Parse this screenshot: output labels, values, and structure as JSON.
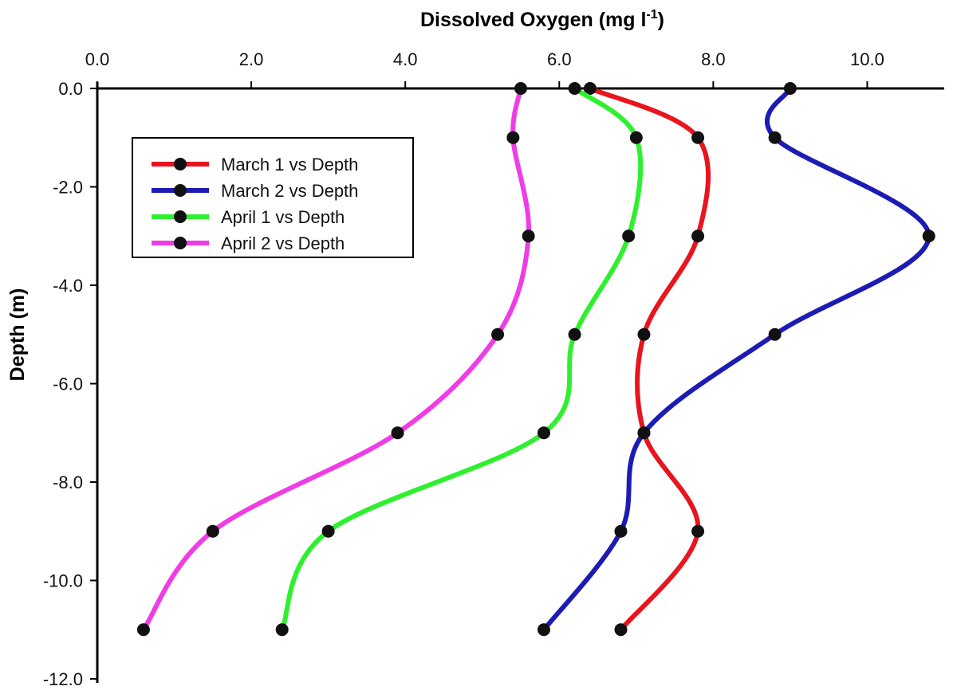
{
  "chart_data": {
    "type": "line",
    "title": "",
    "xlabel": "Dissolved Oxygen  (mg l",
    "xlabel_sup": "-1",
    "xlabel_close": ")",
    "ylabel": "Depth (m)",
    "xlim": [
      0,
      11.0
    ],
    "ylim": [
      -12.0,
      0.0
    ],
    "x_ticks": [
      "0.0",
      "2.0",
      "4.0",
      "6.0",
      "8.0",
      "10.0"
    ],
    "x_tick_values": [
      0,
      2,
      4,
      6,
      8,
      10
    ],
    "y_ticks": [
      "0.0",
      "-2.0",
      "-4.0",
      "-6.0",
      "-8.0",
      "-10.0",
      "-12.0"
    ],
    "y_tick_values": [
      0,
      -2,
      -4,
      -6,
      -8,
      -10,
      -12
    ],
    "x_axis_position": "top",
    "grid": false,
    "legend_position": "top-left",
    "series": [
      {
        "name": "March 1 vs Depth",
        "color": "#e8141e",
        "points": [
          [
            6.4,
            0
          ],
          [
            7.8,
            -1
          ],
          [
            7.8,
            -3
          ],
          [
            7.1,
            -5
          ],
          [
            7.1,
            -7
          ],
          [
            7.8,
            -9
          ],
          [
            6.8,
            -11
          ]
        ]
      },
      {
        "name": "March 2 vs Depth",
        "color": "#1c1cb4",
        "points": [
          [
            9.0,
            0
          ],
          [
            8.8,
            -1
          ],
          [
            10.8,
            -3
          ],
          [
            8.8,
            -5
          ],
          [
            7.1,
            -7
          ],
          [
            6.8,
            -9
          ],
          [
            5.8,
            -11
          ]
        ]
      },
      {
        "name": "April 1 vs Depth",
        "color": "#2ef02e",
        "points": [
          [
            6.2,
            0
          ],
          [
            7.0,
            -1
          ],
          [
            6.9,
            -3
          ],
          [
            6.2,
            -5
          ],
          [
            5.8,
            -7
          ],
          [
            3.0,
            -9
          ],
          [
            2.4,
            -11
          ]
        ]
      },
      {
        "name": "April 2 vs Depth",
        "color": "#f03ce6",
        "points": [
          [
            5.5,
            0
          ],
          [
            5.4,
            -1
          ],
          [
            5.6,
            -3
          ],
          [
            5.2,
            -5
          ],
          [
            3.9,
            -7
          ],
          [
            1.5,
            -9
          ],
          [
            0.6,
            -11
          ]
        ]
      }
    ]
  }
}
